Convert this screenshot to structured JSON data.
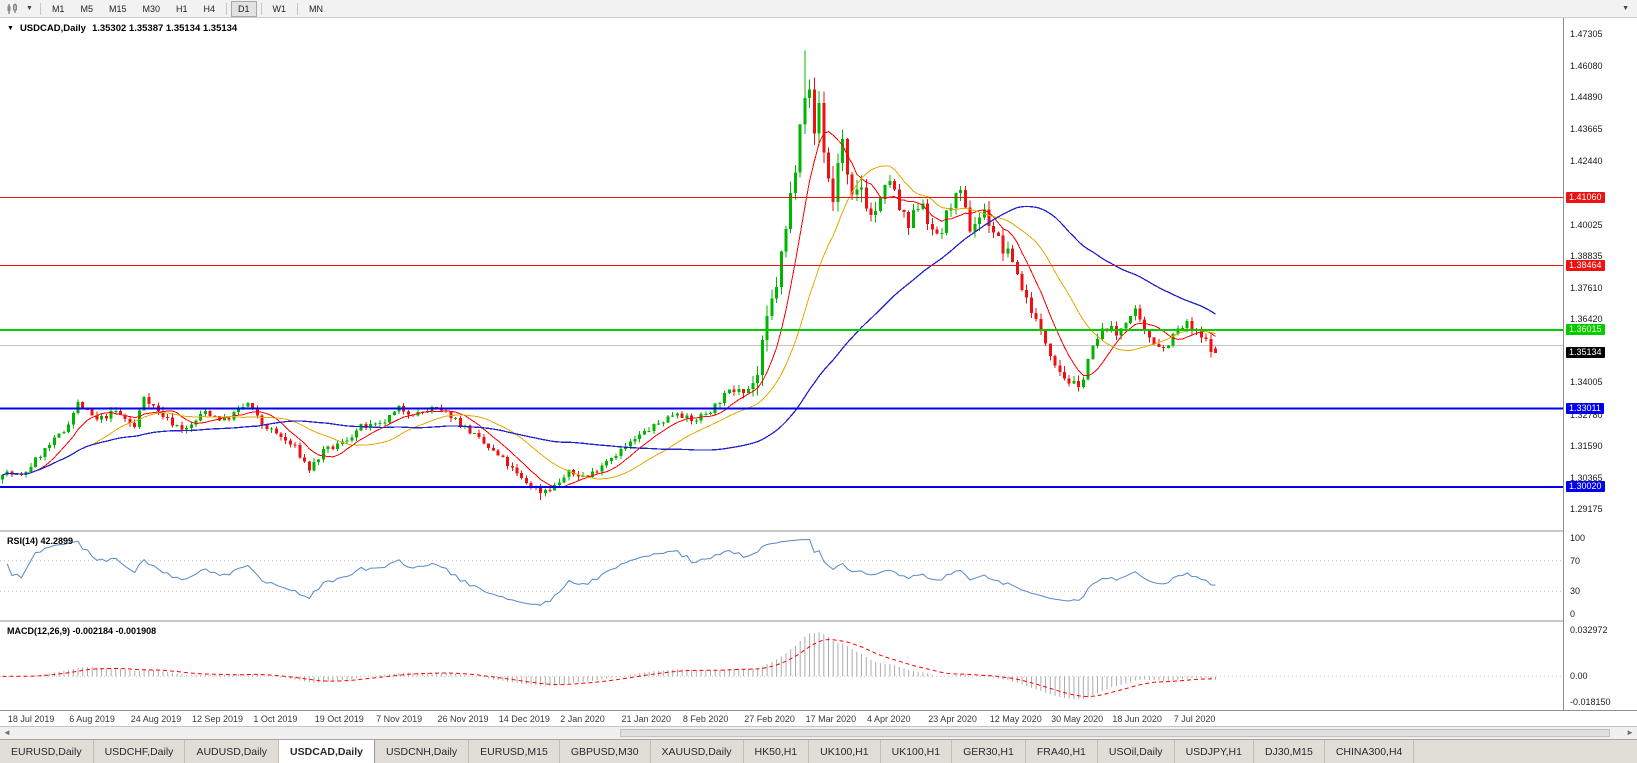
{
  "toolbar": {
    "chart_type_icon": "candlestick-chart",
    "dropdown_caret": "▼",
    "right_caret": "▼",
    "timeframes": [
      "M1",
      "M5",
      "M15",
      "M30",
      "H1",
      "H4",
      "D1",
      "W1",
      "MN"
    ],
    "active_timeframe": "D1"
  },
  "chart": {
    "collapse_caret": "▼",
    "symbol": "USDCAD,Daily",
    "ohlc": "1.35302 1.35387 1.35134 1.35134"
  },
  "price_axis": {
    "ticks": [
      "1.47305",
      "1.46080",
      "1.44890",
      "1.43665",
      "1.42440",
      "1.40025",
      "1.38835",
      "1.37610",
      "1.36420",
      "1.34005",
      "1.32780",
      "1.31590",
      "1.30365",
      "1.29175"
    ],
    "badges": [
      {
        "value": "1.41060",
        "bg": "#ee1111",
        "fg": "#ffffff"
      },
      {
        "value": "1.38464",
        "bg": "#ee1111",
        "fg": "#ffffff"
      },
      {
        "value": "1.36015",
        "bg": "#00cc00",
        "fg": "#ffffcc"
      },
      {
        "value": "1.35134",
        "bg": "#000000",
        "fg": "#ffffff"
      },
      {
        "value": "1.33011",
        "bg": "#0000ee",
        "fg": "#ffffff"
      },
      {
        "value": "1.30020",
        "bg": "#0000ee",
        "fg": "#ffffff"
      }
    ]
  },
  "rsi": {
    "label": "RSI(14) 42.2899",
    "axis": [
      "100",
      "70",
      "30",
      "0"
    ]
  },
  "macd": {
    "label": "MACD(12,26,9) -0.002184 -0.001908",
    "axis_top": "0.032972",
    "axis_zero": "0.00",
    "axis_bottom": "-0.018150"
  },
  "date_axis": {
    "labels": [
      "18 Jul 2019",
      "6 Aug 2019",
      "24 Aug 2019",
      "12 Sep 2019",
      "1 Oct 2019",
      "19 Oct 2019",
      "7 Nov 2019",
      "26 Nov 2019",
      "14 Dec 2019",
      "2 Jan 2020",
      "21 Jan 2020",
      "8 Feb 2020",
      "27 Feb 2020",
      "17 Mar 2020",
      "4 Apr 2020",
      "23 Apr 2020",
      "12 May 2020",
      "30 May 2020",
      "18 Jun 2020",
      "7 Jul 2020"
    ]
  },
  "scrollbar": {
    "left_arrow": "◄",
    "right_arrow": "►"
  },
  "tabs": [
    {
      "label": "EURUSD,Daily",
      "active": false
    },
    {
      "label": "USDCHF,Daily",
      "active": false
    },
    {
      "label": "AUDUSD,Daily",
      "active": false
    },
    {
      "label": "USDCAD,Daily",
      "active": true
    },
    {
      "label": "USDCNH,Daily",
      "active": false
    },
    {
      "label": "EURUSD,M15",
      "active": false
    },
    {
      "label": "GBPUSD,M30",
      "active": false
    },
    {
      "label": "XAUUSD,Daily",
      "active": false
    },
    {
      "label": "HK50,H1",
      "active": false
    },
    {
      "label": "UK100,H1",
      "active": false
    },
    {
      "label": "UK100,H1",
      "active": false
    },
    {
      "label": "GER30,H1",
      "active": false
    },
    {
      "label": "FRA40,H1",
      "active": false
    },
    {
      "label": "USOil,Daily",
      "active": false
    },
    {
      "label": "USDJPY,H1",
      "active": false
    },
    {
      "label": "DJ30,M15",
      "active": false
    },
    {
      "label": "CHINA300,H4",
      "active": false
    }
  ],
  "chart_data": {
    "type": "candlestick",
    "symbol": "USDCAD",
    "timeframe": "Daily",
    "title": "USDCAD,Daily",
    "n_candles": 258,
    "x_range": [
      "18 Jul 2019",
      "13 Jul 2020"
    ],
    "y_range": [
      1.2855,
      1.4792
    ],
    "last_ohlc": {
      "open": 1.35302,
      "high": 1.35387,
      "low": 1.35134,
      "close": 1.35134
    },
    "extreme_high": {
      "index": 170,
      "price": 1.4668
    },
    "extreme_low": {
      "index": 114,
      "price": 1.2952
    },
    "close_path_anchors": [
      [
        0,
        1.306
      ],
      [
        4,
        1.304
      ],
      [
        8,
        1.3125
      ],
      [
        13,
        1.3215
      ],
      [
        16,
        1.332
      ],
      [
        20,
        1.3255
      ],
      [
        24,
        1.329
      ],
      [
        28,
        1.323
      ],
      [
        30,
        1.335
      ],
      [
        33,
        1.329
      ],
      [
        36,
        1.3245
      ],
      [
        39,
        1.322
      ],
      [
        43,
        1.329
      ],
      [
        47,
        1.3255
      ],
      [
        52,
        1.332
      ],
      [
        55,
        1.324
      ],
      [
        58,
        1.3205
      ],
      [
        62,
        1.315
      ],
      [
        65,
        1.307
      ],
      [
        68,
        1.3135
      ],
      [
        72,
        1.317
      ],
      [
        76,
        1.323
      ],
      [
        80,
        1.3235
      ],
      [
        84,
        1.33
      ],
      [
        88,
        1.328
      ],
      [
        91,
        1.33
      ],
      [
        95,
        1.3275
      ],
      [
        98,
        1.323
      ],
      [
        102,
        1.3165
      ],
      [
        106,
        1.3105
      ],
      [
        110,
        1.303
      ],
      [
        114,
        1.2985
      ],
      [
        117,
        1.3005
      ],
      [
        120,
        1.3055
      ],
      [
        124,
        1.304
      ],
      [
        128,
        1.3105
      ],
      [
        132,
        1.3155
      ],
      [
        136,
        1.321
      ],
      [
        140,
        1.3255
      ],
      [
        143,
        1.329
      ],
      [
        146,
        1.325
      ],
      [
        150,
        1.3295
      ],
      [
        153,
        1.335
      ],
      [
        156,
        1.3395
      ],
      [
        158,
        1.338
      ],
      [
        160,
        1.3425
      ],
      [
        162,
        1.363
      ],
      [
        164,
        1.378
      ],
      [
        166,
        1.398
      ],
      [
        168,
        1.424
      ],
      [
        169,
        1.442
      ],
      [
        170,
        1.451
      ],
      [
        171,
        1.4495
      ],
      [
        172,
        1.435
      ],
      [
        173,
        1.4465
      ],
      [
        174,
        1.429
      ],
      [
        175,
        1.418
      ],
      [
        176,
        1.409
      ],
      [
        177,
        1.425
      ],
      [
        178,
        1.432
      ],
      [
        179,
        1.417
      ],
      [
        180,
        1.4085
      ],
      [
        182,
        1.415
      ],
      [
        184,
        1.4035
      ],
      [
        186,
        1.409
      ],
      [
        188,
        1.418
      ],
      [
        190,
        1.406
      ],
      [
        192,
        1.399
      ],
      [
        194,
        1.408
      ],
      [
        195,
        1.4095
      ],
      [
        197,
        1.396
      ],
      [
        199,
        1.398
      ],
      [
        201,
        1.409
      ],
      [
        203,
        1.411
      ],
      [
        205,
        1.399
      ],
      [
        207,
        1.4035
      ],
      [
        208,
        1.405
      ],
      [
        210,
        1.398
      ],
      [
        212,
        1.3905
      ],
      [
        214,
        1.387
      ],
      [
        216,
        1.376
      ],
      [
        218,
        1.368
      ],
      [
        220,
        1.359
      ],
      [
        221,
        1.3555
      ],
      [
        223,
        1.348
      ],
      [
        225,
        1.342
      ],
      [
        227,
        1.339
      ],
      [
        228,
        1.337
      ],
      [
        230,
        1.349
      ],
      [
        232,
        1.3565
      ],
      [
        234,
        1.362
      ],
      [
        236,
        1.358
      ],
      [
        238,
        1.364
      ],
      [
        240,
        1.3665
      ],
      [
        242,
        1.359
      ],
      [
        244,
        1.356
      ],
      [
        246,
        1.353
      ],
      [
        247,
        1.3555
      ],
      [
        249,
        1.36
      ],
      [
        251,
        1.362
      ],
      [
        253,
        1.3585
      ],
      [
        255,
        1.3555
      ],
      [
        257,
        1.3513
      ]
    ],
    "hlines": [
      {
        "price": 1.3542,
        "color": "#c4c4c4",
        "width": 1,
        "back": true
      },
      {
        "price": 1.4106,
        "color": "#ee1111",
        "width": 1
      },
      {
        "price": 1.38464,
        "color": "#ee1111",
        "width": 1
      },
      {
        "price": 1.36015,
        "color": "#00cc00",
        "width": 2
      },
      {
        "price": 1.33011,
        "color": "#0000ee",
        "width": 2
      },
      {
        "price": 1.3002,
        "color": "#0000ee",
        "width": 2
      }
    ],
    "moving_averages": [
      {
        "period": 8,
        "color": "#ff0000",
        "width": 1
      },
      {
        "period": 20,
        "color": "#e8a800",
        "width": 1
      },
      {
        "period": 55,
        "color": "#2222cc",
        "width": 1.3
      }
    ],
    "candle_colors": {
      "bull": "#00b400",
      "bear": "#ee1111"
    },
    "indicators": {
      "rsi": {
        "period": 14,
        "current": 42.2899,
        "levels": [
          70,
          30
        ],
        "axis": [
          100,
          70,
          30,
          0
        ],
        "line_color": "#5588cc"
      },
      "macd": {
        "fast": 12,
        "slow": 26,
        "signal": 9,
        "current": -0.002184,
        "signal_current": -0.001908,
        "axis_max": 0.032972,
        "axis_min": -0.01815,
        "hist_color": "#ababab",
        "signal_color": "#ff0000"
      }
    },
    "legend_position": "none",
    "grid": false
  }
}
